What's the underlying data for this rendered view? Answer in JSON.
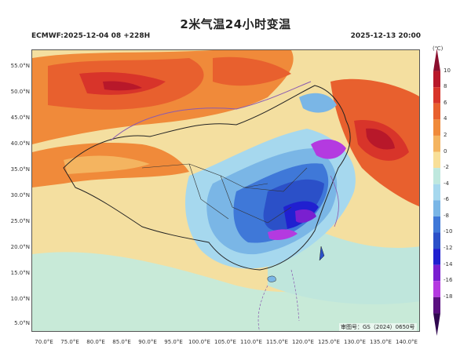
{
  "title": "2米气温24小时变温",
  "model_run": "ECMWF:2025-12-04 08 +228H",
  "valid_time": "2025-12-13 20:00",
  "approval_number": "审图号：GS（2024）0650号",
  "legend": {
    "unit": "(℃)",
    "ticks": [
      "10",
      "8",
      "6",
      "4",
      "2",
      "0",
      "-2",
      "-4",
      "-6",
      "-8",
      "-10",
      "-12",
      "-14",
      "-16",
      "-18"
    ],
    "colors": [
      "#8b0f2e",
      "#b8182a",
      "#d8342a",
      "#e8602e",
      "#f08a3a",
      "#f4b460",
      "#f8df98",
      "#bfe8de",
      "#a6d8ee",
      "#7ab6e6",
      "#3f78d8",
      "#2b50c8",
      "#2020d0",
      "#7a1fd0",
      "#b43ae0",
      "#5a1080",
      "#300850"
    ]
  },
  "axes": {
    "lat_labels": [
      "55.0°N",
      "50.0°N",
      "45.0°N",
      "40.0°N",
      "35.0°N",
      "30.0°N",
      "25.0°N",
      "20.0°N",
      "15.0°N",
      "10.0°N",
      "5.0°N"
    ],
    "lon_labels": [
      "70.0°E",
      "75.0°E",
      "80.0°E",
      "85.0°E",
      "90.0°E",
      "95.0°E",
      "100.0°E",
      "105.0°E",
      "110.0°E",
      "115.0°E",
      "120.0°E",
      "125.0°E",
      "130.0°E",
      "135.0°E",
      "140.0°E"
    ]
  }
}
